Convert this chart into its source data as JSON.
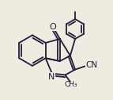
{
  "bg_color": "#f0ebe0",
  "bond_color": "#1e1e3c",
  "bond_width": 1.3,
  "dbo": 0.022,
  "figsize": [
    1.43,
    1.26
  ],
  "dpi": 100,
  "xlim": [
    0,
    1
  ],
  "ylim": [
    0,
    1
  ]
}
